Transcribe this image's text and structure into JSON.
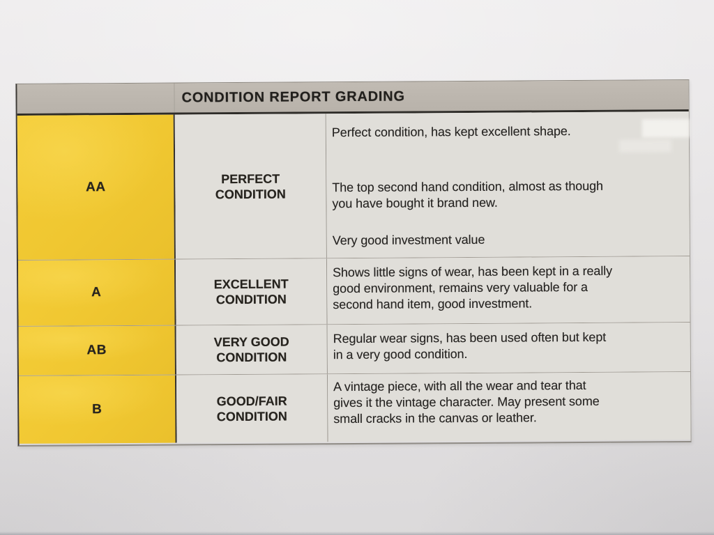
{
  "document": {
    "title": "CONDITION REPORT GRADING",
    "rows": [
      {
        "grade": "AA",
        "label": [
          "PERFECT",
          "CONDITION"
        ],
        "paragraphs": [
          [
            "Perfect condition, has kept excellent shape."
          ],
          [
            "The top second hand condition, almost as though",
            "you have bought it brand new."
          ],
          [
            "Very good investment value"
          ]
        ]
      },
      {
        "grade": "A",
        "label": [
          "EXCELLENT",
          "CONDITION"
        ],
        "paragraphs": [
          [
            "Shows little signs of wear, has been kept in a really",
            "good environment, remains very valuable for a",
            "second hand item, good investment."
          ]
        ]
      },
      {
        "grade": "AB",
        "label": [
          "VERY GOOD",
          "CONDITION"
        ],
        "paragraphs": [
          [
            "Regular wear signs, has been used often but kept",
            "in a very good condition."
          ]
        ]
      },
      {
        "grade": "B",
        "label": [
          "GOOD/FAIR",
          "CONDITION"
        ],
        "paragraphs": [
          [
            "A vintage piece, with all the wear and tear that",
            "gives it the vintage character. May present some",
            "small cracks in the canvas or leather."
          ]
        ]
      }
    ],
    "colors": {
      "grade_column_yellow": "#f0c731",
      "header_gray": "#bcb6ae",
      "cell_gray": "#e0ded9",
      "paper_gray": "#e4e2e3",
      "text_black": "#242220"
    }
  }
}
